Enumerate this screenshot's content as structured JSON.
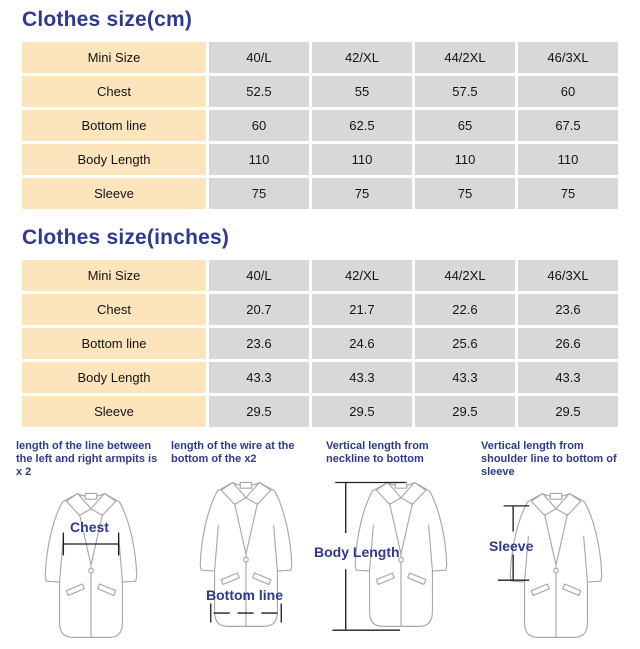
{
  "colors": {
    "accent": "#2e3a8c",
    "label_column_bg": "#fce4bc",
    "value_cell_bg": "#d8d8d8",
    "measure_line": "#1f1f1f",
    "coat_outline": "#a8a8a8"
  },
  "tables": [
    {
      "id": "cm",
      "title": "Clothes size(cm)",
      "header": {
        "label": "Mini Size",
        "sizes": [
          "40/L",
          "42/XL",
          "44/2XL",
          "46/3XL"
        ]
      },
      "rows": [
        {
          "label": "Chest",
          "values": [
            "52.5",
            "55",
            "57.5",
            "60"
          ]
        },
        {
          "label": "Bottom line",
          "values": [
            "60",
            "62.5",
            "65",
            "67.5"
          ]
        },
        {
          "label": "Body Length",
          "values": [
            "110",
            "110",
            "110",
            "110"
          ]
        },
        {
          "label": "Sleeve",
          "values": [
            "75",
            "75",
            "75",
            "75"
          ]
        }
      ]
    },
    {
      "id": "inches",
      "title": "Clothes size(inches)",
      "header": {
        "label": "Mini Size",
        "sizes": [
          "40/L",
          "42/XL",
          "44/2XL",
          "46/3XL"
        ]
      },
      "rows": [
        {
          "label": "Chest",
          "values": [
            "20.7",
            "21.7",
            "22.6",
            "23.6"
          ]
        },
        {
          "label": "Bottom line",
          "values": [
            "23.6",
            "24.6",
            "25.6",
            "26.6"
          ]
        },
        {
          "label": "Body Length",
          "values": [
            "43.3",
            "43.3",
            "43.3",
            "43.3"
          ]
        },
        {
          "label": "Sleeve",
          "values": [
            "29.5",
            "29.5",
            "29.5",
            "29.5"
          ]
        }
      ]
    }
  ],
  "diagrams": [
    {
      "caption": "length of the line between the left and right armpits is x 2",
      "label": "Chest"
    },
    {
      "caption": "length of the wire at the bottom of the x2",
      "label": "Bottom line"
    },
    {
      "caption": "Vertical length from neckline to bottom",
      "label": "Body Length"
    },
    {
      "caption": "Vertical length from shoulder line to bottom of sleeve",
      "label": "Sleeve"
    }
  ]
}
